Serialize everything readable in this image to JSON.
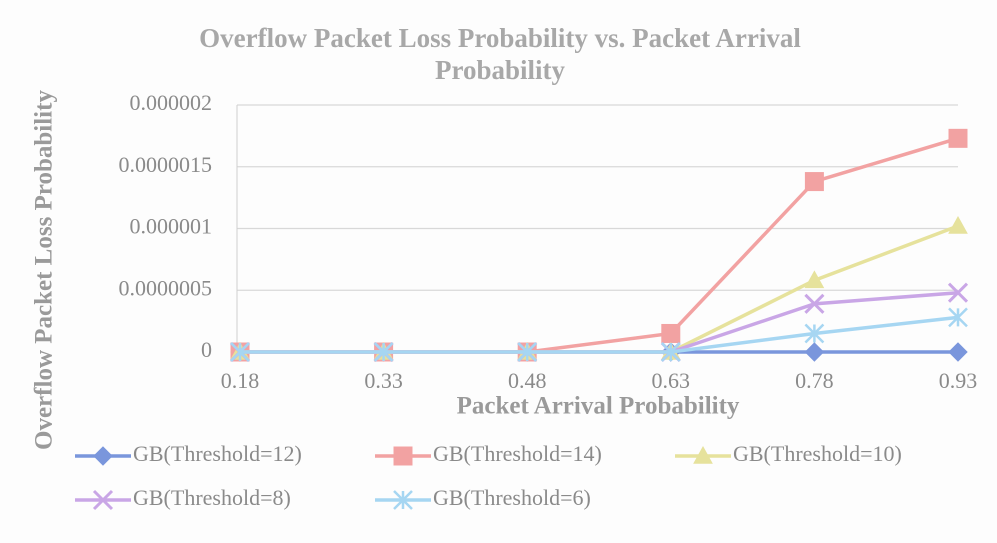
{
  "chart_data": {
    "type": "line",
    "title": "Overflow Packet Loss Probability vs. Packet Arrival Probability",
    "x_label": "Packet Arrival Probability",
    "y_label": "Overflow Packet Loss Probability",
    "categories": [
      "0.18",
      "0.33",
      "0.48",
      "0.63",
      "0.78",
      "0.93"
    ],
    "ylim": [
      0,
      2e-06
    ],
    "yticks": [
      0,
      {
        "value": 5e-07,
        "label": "0.0000005"
      },
      {
        "value": 1e-06,
        "label": "0.000001"
      },
      {
        "value": 1.5e-06,
        "label": "0.0000015"
      },
      {
        "value": 2e-06,
        "label": "0.000002"
      }
    ],
    "grid": true,
    "series": [
      {
        "name": "GB(Threshold=12)",
        "color": "#7a96dc",
        "marker": "diamond",
        "values": [
          0,
          0,
          0,
          0,
          0,
          0
        ]
      },
      {
        "name": "GB(Threshold=14)",
        "color": "#f2a2a2",
        "marker": "square",
        "values": [
          0,
          0,
          0,
          1.5e-07,
          1.38e-06,
          1.73e-06
        ]
      },
      {
        "name": "GB(Threshold=10)",
        "color": "#e6e29c",
        "marker": "triangle",
        "values": [
          0,
          0,
          0,
          0,
          5.8e-07,
          1.02e-06
        ]
      },
      {
        "name": "GB(Threshold=8)",
        "color": "#c9a6e6",
        "marker": "x",
        "values": [
          0,
          0,
          0,
          0,
          3.9e-07,
          4.8e-07
        ]
      },
      {
        "name": "GB(Threshold=6)",
        "color": "#a6d6f2",
        "marker": "star",
        "values": [
          0,
          0,
          0,
          0,
          1.5e-07,
          2.8e-07
        ]
      }
    ]
  }
}
